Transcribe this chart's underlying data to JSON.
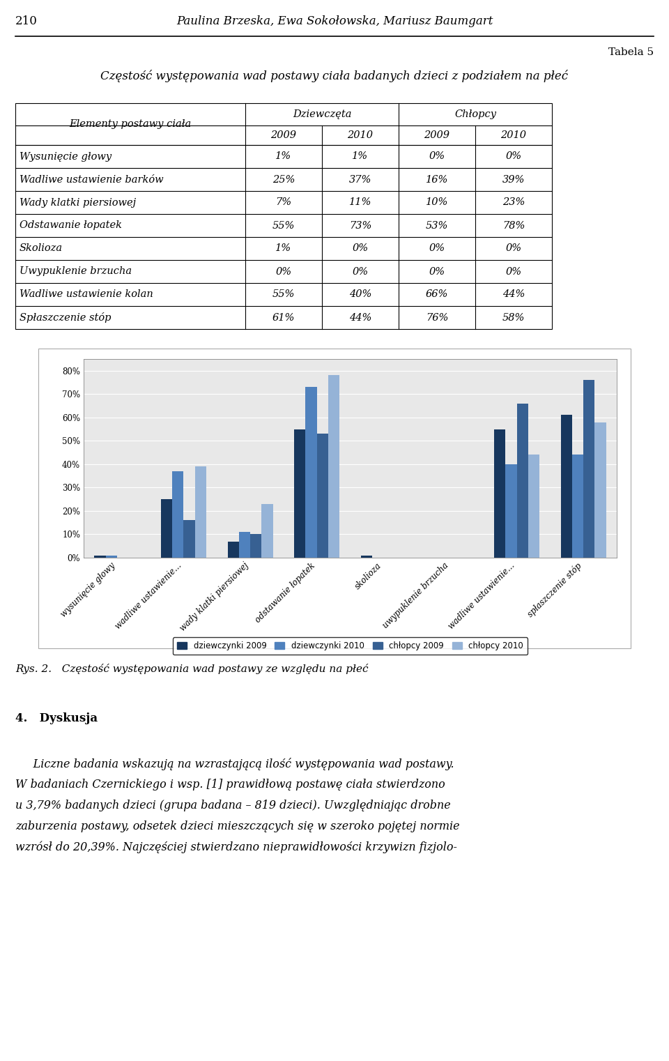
{
  "page_number": "210",
  "header_author": "Paulina Brzeska, Ewa Sokołowska, Mariusz Baumgart",
  "table_title_right": "Tabela 5",
  "table_title": "Częstość występowania wad postawy ciała badanych dzieci z podziałem na płeć",
  "col_headers": [
    "Elementy postawy ciała",
    "Dziewczęta",
    "Chłopcy"
  ],
  "col_sub_headers": [
    "2009",
    "2010",
    "2009",
    "2010"
  ],
  "rows": [
    [
      "Wysunięcie głowy",
      "1%",
      "1%",
      "0%",
      "0%"
    ],
    [
      "Wadliwe ustawienie barków",
      "25%",
      "37%",
      "16%",
      "39%"
    ],
    [
      "Wady klatki piersiowej",
      "7%",
      "11%",
      "10%",
      "23%"
    ],
    [
      "Odstawanie łopatek",
      "55%",
      "73%",
      "53%",
      "78%"
    ],
    [
      "Skolioza",
      "1%",
      "0%",
      "0%",
      "0%"
    ],
    [
      "Uwypuklenie brzucha",
      "0%",
      "0%",
      "0%",
      "0%"
    ],
    [
      "Wadliwe ustawienie kolan",
      "55%",
      "40%",
      "66%",
      "44%"
    ],
    [
      "Spłaszczenie stóp",
      "61%",
      "44%",
      "76%",
      "58%"
    ]
  ],
  "chart_categories": [
    "wysunięcie głowy",
    "wadliwe ustawienie…",
    "wady klatki piersiowej",
    "odstawanie łopatek",
    "skolioza",
    "uwypuklenie brzucha",
    "wadliwe ustawienie…",
    "spłaszczenie stóp"
  ],
  "series": {
    "dziewczynki 2009": [
      1,
      25,
      7,
      55,
      1,
      0,
      55,
      61
    ],
    "dziewczynki 2010": [
      1,
      37,
      11,
      73,
      0,
      0,
      40,
      44
    ],
    "chłopcy 2009": [
      0,
      16,
      10,
      53,
      0,
      0,
      66,
      76
    ],
    "chłopcy 2010": [
      0,
      39,
      23,
      78,
      0,
      0,
      44,
      58
    ]
  },
  "series_colors": {
    "dziewczynki 2009": "#17375E",
    "dziewczynki 2010": "#4F81BD",
    "chłopcy 2009": "#376092",
    "chłopcy 2010": "#95B3D7"
  },
  "series_order": [
    "dziewczynki 2009",
    "dziewczynki 2010",
    "chłopcy 2009",
    "chłopcy 2010"
  ],
  "y_ticks": [
    0,
    10,
    20,
    30,
    40,
    50,
    60,
    70,
    80
  ],
  "figure_caption": "Rys. 2.   Częstość występowania wad postawy ze względu na płeć",
  "section_header": "4.   Dyskusja",
  "body_text_1": "     Liczne badania wskazują na wzrastającą ilość występowania wad postawy.",
  "body_text_2": "W badaniach Czernickiego i wsp. [1] prawidłową postawę ciała stwierdzono",
  "body_text_3": "u 3,79% badanych dzieci (grupa badana – 819 dzieci). Uwzględniając drobne",
  "body_text_4": "zaburzenia postawy, odsetek dzieci mieszczących się w szeroko pojętej normie",
  "body_text_5": "wzrósł do 20,39%. Najczęściej stwierdzano nieprawidłowości krzywizn fizjolo-"
}
